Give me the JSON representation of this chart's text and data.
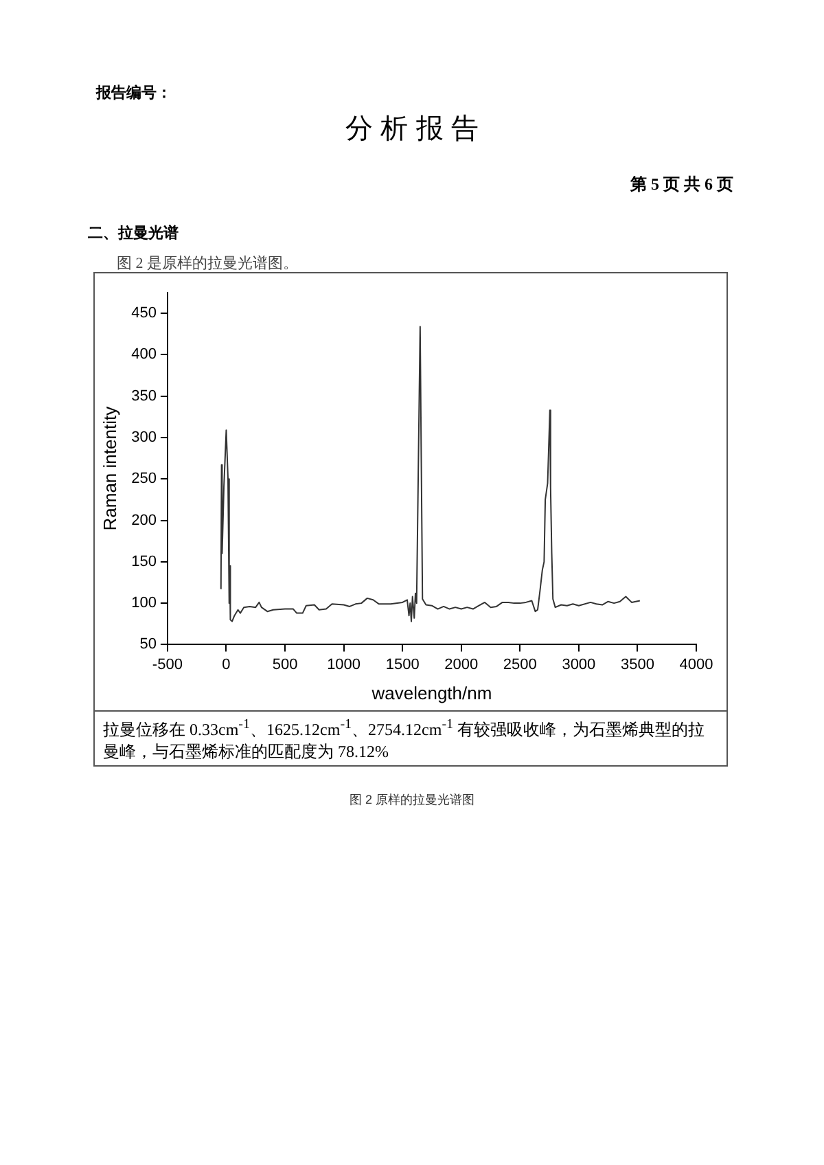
{
  "chart_data": {
    "type": "line",
    "title": "分 析 报 告",
    "xlabel": "wavelength/nm",
    "ylabel": "Raman intentity",
    "annotations": [
      "报告编号：",
      "第 5 页 共 6 页",
      "二、拉曼光谱",
      "图 2 是原样的拉曼光谱图。",
      "拉曼位移在 0.33cm$^{-1}$、1625.12cm$^{-1}$、2754.12cm$^{-1}$ 有较强吸收峰，为石墨烯典型的拉曼峰，与石墨烯标准的匹配度为 78.12%",
      "图 2 原样的拉曼光谱图"
    ],
    "series": [
      {
        "color": "#333333",
        "x": [
          -45,
          -40,
          -35,
          -20,
          0,
          15,
          25,
          30,
          35,
          50,
          70,
          100,
          120,
          150,
          200,
          250,
          280,
          300,
          350,
          400,
          500,
          570,
          600,
          650,
          680,
          750,
          790,
          850,
          900,
          1000,
          1050,
          1100,
          1150,
          1200,
          1250,
          1300,
          1400,
          1500,
          1540,
          1555,
          1565,
          1575,
          1585,
          1600,
          1610,
          1620,
          1650,
          1670,
          1700,
          1750,
          1800,
          1850,
          1900,
          1950,
          2000,
          2050,
          2100,
          2150,
          2200,
          2250,
          2300,
          2350,
          2400,
          2450,
          2500,
          2550,
          2600,
          2630,
          2650,
          2670,
          2690,
          2705,
          2715,
          2735,
          2754,
          2760,
          2770,
          2780,
          2800,
          2850,
          2900,
          2950,
          3000,
          3100,
          3150,
          3200,
          3250,
          3300,
          3350,
          3400,
          3450,
          3520
        ],
        "values": [
          117,
          267,
          160,
          240,
          309,
          250,
          100,
          145,
          80,
          78,
          85,
          92,
          88,
          95,
          96,
          95,
          101,
          95,
          90,
          92,
          93,
          93,
          88,
          88,
          97,
          98,
          92,
          93,
          99,
          98,
          96,
          99,
          100,
          106,
          104,
          99,
          99,
          101,
          104,
          85,
          100,
          78,
          108,
          82,
          112,
          100,
          434,
          105,
          98,
          97,
          93,
          96,
          93,
          95,
          93,
          95,
          93,
          97,
          101,
          95,
          96,
          101,
          101,
          100,
          100,
          101,
          103,
          90,
          92,
          115,
          140,
          150,
          225,
          245,
          333,
          240,
          160,
          105,
          95,
          98,
          97,
          99,
          97,
          101,
          99,
          98,
          102,
          100,
          102,
          108,
          101,
          103
        ]
      }
    ],
    "xlim": [
      -500,
      4000
    ],
    "xticks": [
      -500,
      0,
      500,
      1000,
      1500,
      2000,
      2500,
      3000,
      3500,
      4000
    ],
    "ylim": [
      50,
      475
    ],
    "yticks": [
      50,
      100,
      150,
      200,
      250,
      300,
      350,
      400,
      450
    ],
    "grid": false,
    "legend": false,
    "marker": "none",
    "line_style": "solid"
  }
}
